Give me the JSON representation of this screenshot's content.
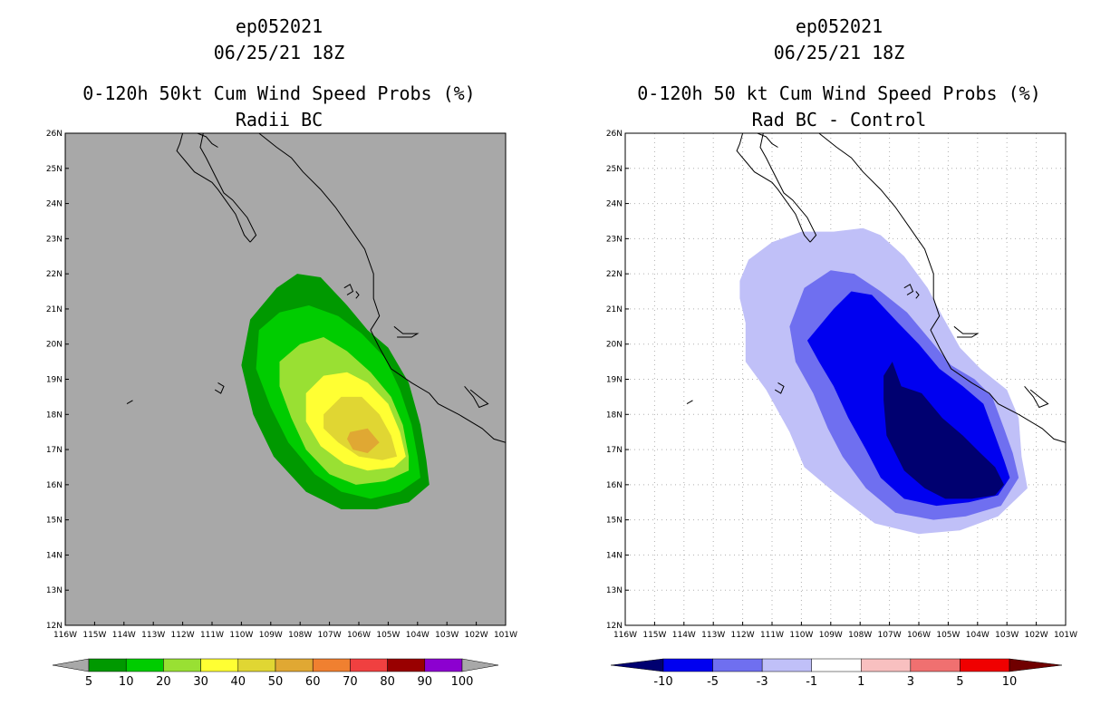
{
  "chart_data": [
    {
      "type": "heatmap",
      "storm_id": "ep052021",
      "datetime": "06/25/21 18Z",
      "title": "0-120h 50kt Cum Wind Speed Probs (%)",
      "subtitle": "Radii BC",
      "background_color": "#a8a8a8",
      "grid": false,
      "xlim": [
        -116,
        -101
      ],
      "ylim": [
        12,
        26
      ],
      "x_tick_labels": [
        "116W",
        "115W",
        "114W",
        "113W",
        "112W",
        "111W",
        "110W",
        "109W",
        "108W",
        "107W",
        "106W",
        "105W",
        "104W",
        "103W",
        "102W",
        "101W"
      ],
      "y_tick_labels": [
        "12N",
        "13N",
        "14N",
        "15N",
        "16N",
        "17N",
        "18N",
        "19N",
        "20N",
        "21N",
        "22N",
        "23N",
        "24N",
        "25N",
        "26N"
      ],
      "colorbar": {
        "labels": [
          "5",
          "10",
          "20",
          "30",
          "40",
          "50",
          "60",
          "70",
          "80",
          "90",
          "100"
        ],
        "colors": [
          "#009900",
          "#00cc00",
          "#99e033",
          "#ffff33",
          "#e0d633",
          "#e0a833",
          "#f08030",
          "#f04040",
          "#990000",
          "#8c00d0"
        ],
        "end_colors": [
          "#a8a8a8",
          "#a8a8a8"
        ]
      },
      "contours": [
        {
          "level": "5-10",
          "color": "#009900",
          "points": [
            [
              -109.7,
              20.7
            ],
            [
              -108.8,
              21.6
            ],
            [
              -108.1,
              22.0
            ],
            [
              -107.3,
              21.9
            ],
            [
              -106.4,
              21.1
            ],
            [
              -105.7,
              20.4
            ],
            [
              -105.0,
              19.9
            ],
            [
              -104.3,
              18.9
            ],
            [
              -103.9,
              17.7
            ],
            [
              -103.7,
              16.7
            ],
            [
              -103.6,
              16.0
            ],
            [
              -104.3,
              15.5
            ],
            [
              -105.4,
              15.3
            ],
            [
              -106.6,
              15.3
            ],
            [
              -107.8,
              15.8
            ],
            [
              -108.9,
              16.8
            ],
            [
              -109.6,
              18.0
            ],
            [
              -110.0,
              19.4
            ]
          ]
        },
        {
          "level": "10-20",
          "color": "#00cc00",
          "points": [
            [
              -109.4,
              20.4
            ],
            [
              -108.7,
              20.9
            ],
            [
              -107.7,
              21.1
            ],
            [
              -106.7,
              20.8
            ],
            [
              -105.9,
              20.3
            ],
            [
              -105.1,
              19.6
            ],
            [
              -104.6,
              18.7
            ],
            [
              -104.2,
              17.7
            ],
            [
              -104.0,
              16.8
            ],
            [
              -103.9,
              16.2
            ],
            [
              -104.6,
              15.8
            ],
            [
              -105.6,
              15.6
            ],
            [
              -106.6,
              15.8
            ],
            [
              -107.5,
              16.3
            ],
            [
              -108.4,
              17.2
            ],
            [
              -109.0,
              18.2
            ],
            [
              -109.5,
              19.3
            ]
          ]
        },
        {
          "level": "20-30",
          "color": "#99e033",
          "points": [
            [
              -108.7,
              19.5
            ],
            [
              -108.0,
              20.0
            ],
            [
              -107.2,
              20.2
            ],
            [
              -106.4,
              19.8
            ],
            [
              -105.6,
              19.2
            ],
            [
              -104.9,
              18.5
            ],
            [
              -104.5,
              17.7
            ],
            [
              -104.3,
              16.8
            ],
            [
              -104.3,
              16.4
            ],
            [
              -105.1,
              16.1
            ],
            [
              -106.1,
              16.0
            ],
            [
              -107.0,
              16.3
            ],
            [
              -107.8,
              17.0
            ],
            [
              -108.3,
              17.9
            ],
            [
              -108.7,
              18.8
            ]
          ]
        },
        {
          "level": "30-40",
          "color": "#ffff33",
          "points": [
            [
              -107.8,
              18.6
            ],
            [
              -107.2,
              19.1
            ],
            [
              -106.4,
              19.2
            ],
            [
              -105.7,
              18.9
            ],
            [
              -105.0,
              18.3
            ],
            [
              -104.6,
              17.5
            ],
            [
              -104.4,
              16.8
            ],
            [
              -104.8,
              16.5
            ],
            [
              -105.7,
              16.4
            ],
            [
              -106.5,
              16.6
            ],
            [
              -107.3,
              17.1
            ],
            [
              -107.8,
              17.8
            ]
          ]
        },
        {
          "level": "40-50",
          "color": "#e0d633",
          "points": [
            [
              -107.2,
              18.0
            ],
            [
              -106.6,
              18.5
            ],
            [
              -105.9,
              18.5
            ],
            [
              -105.3,
              18.0
            ],
            [
              -104.9,
              17.4
            ],
            [
              -104.7,
              16.8
            ],
            [
              -105.2,
              16.7
            ],
            [
              -106.0,
              16.8
            ],
            [
              -106.7,
              17.2
            ],
            [
              -107.2,
              17.6
            ]
          ]
        },
        {
          "level": "50-60",
          "color": "#e0a833",
          "points": [
            [
              -106.3,
              17.5
            ],
            [
              -105.7,
              17.6
            ],
            [
              -105.3,
              17.2
            ],
            [
              -105.7,
              16.9
            ],
            [
              -106.2,
              17.0
            ],
            [
              -106.4,
              17.3
            ]
          ]
        }
      ]
    },
    {
      "type": "heatmap",
      "storm_id": "ep052021",
      "datetime": "06/25/21 18Z",
      "title": "0-120h 50 kt Cum Wind Speed Probs (%)",
      "subtitle": "Rad BC - Control",
      "background_color": "#ffffff",
      "grid": true,
      "xlim": [
        -116,
        -101
      ],
      "ylim": [
        12,
        26
      ],
      "x_tick_labels": [
        "116W",
        "115W",
        "114W",
        "113W",
        "112W",
        "111W",
        "110W",
        "109W",
        "108W",
        "107W",
        "106W",
        "105W",
        "104W",
        "103W",
        "102W",
        "101W"
      ],
      "y_tick_labels": [
        "12N",
        "13N",
        "14N",
        "15N",
        "16N",
        "17N",
        "18N",
        "19N",
        "20N",
        "21N",
        "22N",
        "23N",
        "24N",
        "25N",
        "26N"
      ],
      "colorbar": {
        "labels": [
          "-10",
          "-5",
          "-3",
          "-1",
          "1",
          "3",
          "5",
          "10"
        ],
        "colors": [
          "#0000f0",
          "#6f6ff0",
          "#c0c0f8",
          "#ffffff",
          "#f8c0c0",
          "#f07070",
          "#f00000"
        ],
        "end_colors": [
          "#000070",
          "#700000"
        ]
      },
      "contours": [
        {
          "level": "-1 to -3",
          "color": "#c0c0f8",
          "points": [
            [
              -112.1,
              21.8
            ],
            [
              -111.8,
              22.4
            ],
            [
              -111.0,
              22.9
            ],
            [
              -110.0,
              23.2
            ],
            [
              -108.9,
              23.2
            ],
            [
              -107.9,
              23.3
            ],
            [
              -107.3,
              23.1
            ],
            [
              -106.5,
              22.5
            ],
            [
              -105.7,
              21.6
            ],
            [
              -105.2,
              20.8
            ],
            [
              -104.6,
              19.9
            ],
            [
              -103.9,
              19.3
            ],
            [
              -103.0,
              18.7
            ],
            [
              -102.6,
              17.9
            ],
            [
              -102.5,
              16.8
            ],
            [
              -102.3,
              15.9
            ],
            [
              -103.3,
              15.1
            ],
            [
              -104.6,
              14.7
            ],
            [
              -106.0,
              14.6
            ],
            [
              -107.5,
              14.9
            ],
            [
              -108.9,
              15.8
            ],
            [
              -109.9,
              16.5
            ],
            [
              -110.4,
              17.5
            ],
            [
              -111.2,
              18.7
            ],
            [
              -111.9,
              19.5
            ],
            [
              -111.9,
              20.6
            ],
            [
              -112.1,
              21.3
            ]
          ]
        },
        {
          "level": "-3 to -5",
          "color": "#6f6ff0",
          "points": [
            [
              -110.4,
              20.5
            ],
            [
              -109.9,
              21.6
            ],
            [
              -109.0,
              22.1
            ],
            [
              -108.2,
              22.0
            ],
            [
              -107.3,
              21.5
            ],
            [
              -106.4,
              20.9
            ],
            [
              -105.6,
              20.1
            ],
            [
              -104.9,
              19.4
            ],
            [
              -104.1,
              19.0
            ],
            [
              -103.5,
              18.5
            ],
            [
              -103.1,
              17.6
            ],
            [
              -102.8,
              16.9
            ],
            [
              -102.6,
              16.2
            ],
            [
              -103.2,
              15.4
            ],
            [
              -104.4,
              15.1
            ],
            [
              -105.5,
              15.0
            ],
            [
              -106.8,
              15.2
            ],
            [
              -107.8,
              15.9
            ],
            [
              -108.6,
              16.8
            ],
            [
              -109.1,
              17.6
            ],
            [
              -109.6,
              18.6
            ],
            [
              -110.2,
              19.5
            ]
          ]
        },
        {
          "level": "-5 to -10",
          "color": "#0000f0",
          "points": [
            [
              -109.8,
              20.1
            ],
            [
              -108.9,
              21.0
            ],
            [
              -108.3,
              21.5
            ],
            [
              -107.6,
              21.4
            ],
            [
              -106.7,
              20.6
            ],
            [
              -106.0,
              20.0
            ],
            [
              -105.3,
              19.3
            ],
            [
              -104.5,
              18.8
            ],
            [
              -103.8,
              18.3
            ],
            [
              -103.4,
              17.4
            ],
            [
              -103.1,
              16.7
            ],
            [
              -102.9,
              16.2
            ],
            [
              -103.3,
              15.7
            ],
            [
              -104.3,
              15.5
            ],
            [
              -105.4,
              15.4
            ],
            [
              -106.5,
              15.6
            ],
            [
              -107.3,
              16.2
            ],
            [
              -107.8,
              17.0
            ],
            [
              -108.4,
              17.9
            ],
            [
              -108.9,
              18.8
            ],
            [
              -109.4,
              19.5
            ]
          ]
        },
        {
          "level": "below -10",
          "color": "#000070",
          "points": [
            [
              -106.9,
              19.5
            ],
            [
              -106.6,
              18.8
            ],
            [
              -105.9,
              18.6
            ],
            [
              -105.2,
              17.9
            ],
            [
              -104.5,
              17.4
            ],
            [
              -103.9,
              16.9
            ],
            [
              -103.4,
              16.5
            ],
            [
              -103.1,
              16.0
            ],
            [
              -103.4,
              15.7
            ],
            [
              -104.2,
              15.6
            ],
            [
              -105.1,
              15.6
            ],
            [
              -105.8,
              15.9
            ],
            [
              -106.5,
              16.4
            ],
            [
              -107.1,
              17.4
            ],
            [
              -107.2,
              18.4
            ],
            [
              -107.2,
              19.1
            ]
          ]
        }
      ]
    }
  ],
  "coastline": {
    "color": "#000000",
    "baja_west": [
      [
        -112.0,
        26.0
      ],
      [
        -112.1,
        25.7
      ],
      [
        -112.2,
        25.5
      ],
      [
        -111.9,
        25.2
      ],
      [
        -111.6,
        24.9
      ],
      [
        -111.0,
        24.6
      ],
      [
        -110.8,
        24.4
      ],
      [
        -110.2,
        23.7
      ],
      [
        -109.9,
        23.1
      ],
      [
        -109.7,
        22.9
      ]
    ],
    "baja_east": [
      [
        -109.7,
        22.9
      ],
      [
        -109.5,
        23.1
      ],
      [
        -109.8,
        23.6
      ],
      [
        -110.3,
        24.1
      ],
      [
        -110.6,
        24.3
      ],
      [
        -110.9,
        24.8
      ],
      [
        -111.2,
        25.3
      ],
      [
        -111.4,
        25.6
      ],
      [
        -111.3,
        26.0
      ]
    ],
    "mainland": [
      [
        -109.4,
        26.0
      ],
      [
        -108.8,
        25.6
      ],
      [
        -108.3,
        25.3
      ],
      [
        -107.9,
        24.9
      ],
      [
        -107.3,
        24.4
      ],
      [
        -106.8,
        23.9
      ],
      [
        -106.3,
        23.3
      ],
      [
        -105.8,
        22.7
      ],
      [
        -105.5,
        22.0
      ],
      [
        -105.5,
        21.3
      ],
      [
        -105.3,
        20.8
      ],
      [
        -105.6,
        20.4
      ],
      [
        -105.3,
        19.9
      ],
      [
        -104.9,
        19.3
      ],
      [
        -104.2,
        18.9
      ],
      [
        -103.6,
        18.6
      ],
      [
        -103.3,
        18.3
      ],
      [
        -102.6,
        18.0
      ],
      [
        -101.8,
        17.6
      ],
      [
        -101.4,
        17.3
      ],
      [
        -101.0,
        17.2
      ]
    ],
    "islands": [
      [
        [
          -106.5,
          21.6
        ],
        [
          -106.3,
          21.7
        ],
        [
          -106.2,
          21.5
        ],
        [
          -106.4,
          21.4
        ]
      ],
      [
        [
          -106.1,
          21.5
        ],
        [
          -106.0,
          21.4
        ],
        [
          -106.1,
          21.3
        ]
      ],
      [
        [
          -110.8,
          18.9
        ],
        [
          -110.6,
          18.8
        ],
        [
          -110.7,
          18.6
        ],
        [
          -110.9,
          18.7
        ]
      ],
      [
        [
          -113.9,
          18.3
        ],
        [
          -113.7,
          18.4
        ]
      ],
      [
        [
          -102.4,
          18.8
        ],
        [
          -102.1,
          18.5
        ],
        [
          -101.9,
          18.2
        ],
        [
          -101.6,
          18.3
        ],
        [
          -101.9,
          18.5
        ],
        [
          -102.2,
          18.7
        ]
      ],
      [
        [
          -104.8,
          20.5
        ],
        [
          -104.5,
          20.3
        ],
        [
          -104.0,
          20.3
        ],
        [
          -104.2,
          20.2
        ],
        [
          -104.7,
          20.2
        ]
      ]
    ],
    "north_coast_left": [
      [
        -111.5,
        26.0
      ],
      [
        -111.2,
        25.9
      ],
      [
        -111.0,
        25.7
      ],
      [
        -110.8,
        25.6
      ]
    ]
  }
}
